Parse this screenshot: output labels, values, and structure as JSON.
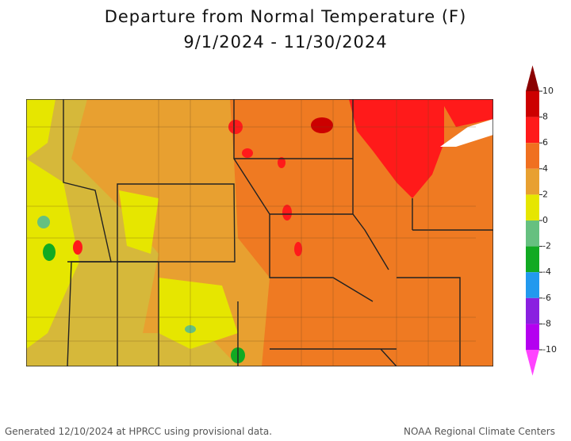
{
  "title": "Departure from Normal Temperature (F)",
  "subtitle": "9/1/2024 - 11/30/2024",
  "legend": {
    "ticks": [
      10,
      8,
      6,
      4,
      2,
      0,
      -2,
      -4,
      -6,
      -8,
      -10
    ],
    "colors": [
      "#8b0000",
      "#cc0000",
      "#ff1a1a",
      "#f07020",
      "#e8a030",
      "#e6e600",
      "#66c080",
      "#11aa22",
      "#2299ee",
      "#8a20e0",
      "#b400f0",
      "#ff44ff"
    ]
  },
  "footer": {
    "left": "Generated 12/10/2024 at HPRCC using provisional data.",
    "right": "NOAA Regional Climate Centers"
  }
}
